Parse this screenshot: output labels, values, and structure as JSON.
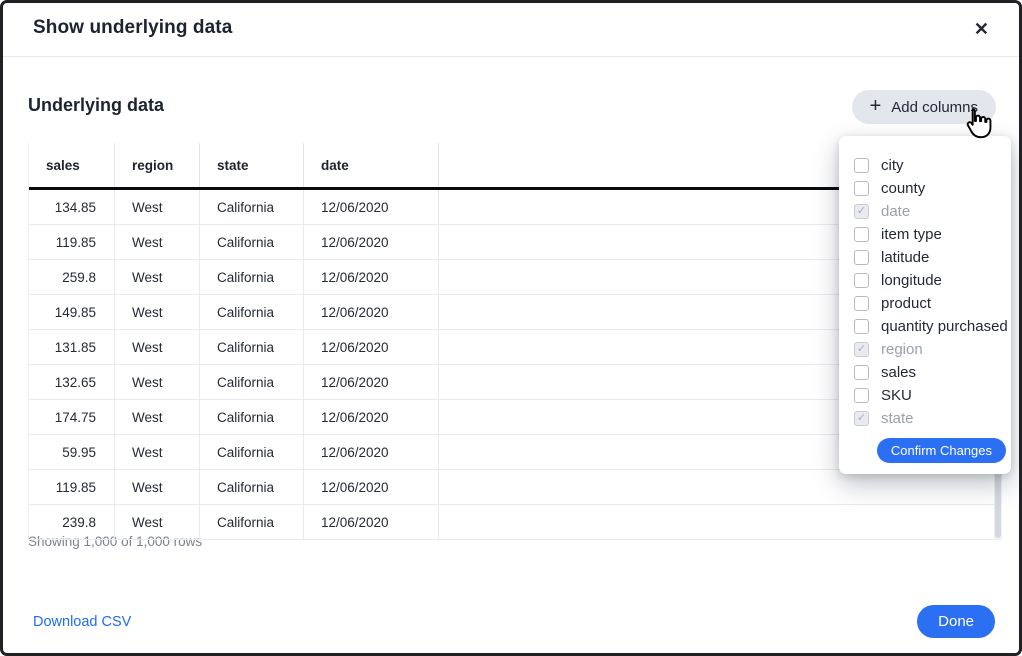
{
  "modal": {
    "title": "Show underlying data",
    "close_icon": "✕"
  },
  "body": {
    "section_title": "Underlying data",
    "add_columns": {
      "icon": "+",
      "label": "Add columns"
    },
    "summary": "Showing 1,000 of 1,000 rows"
  },
  "dropdown": {
    "items": [
      {
        "label": "city",
        "checked": false
      },
      {
        "label": "county",
        "checked": false
      },
      {
        "label": "date",
        "checked": true
      },
      {
        "label": "item type",
        "checked": false
      },
      {
        "label": "latitude",
        "checked": false
      },
      {
        "label": "longitude",
        "checked": false
      },
      {
        "label": "product",
        "checked": false
      },
      {
        "label": "quantity purchased",
        "checked": false
      },
      {
        "label": "region",
        "checked": true
      },
      {
        "label": "sales",
        "checked": false
      },
      {
        "label": "SKU",
        "checked": false
      },
      {
        "label": "state",
        "checked": true
      }
    ],
    "check_icon": "✓",
    "confirm_label": "Confirm Changes"
  },
  "table": {
    "columns": [
      "sales",
      "region",
      "state",
      "date"
    ],
    "rows": [
      [
        "134.85",
        "West",
        "California",
        "12/06/2020"
      ],
      [
        "119.85",
        "West",
        "California",
        "12/06/2020"
      ],
      [
        "259.8",
        "West",
        "California",
        "12/06/2020"
      ],
      [
        "149.85",
        "West",
        "California",
        "12/06/2020"
      ],
      [
        "131.85",
        "West",
        "California",
        "12/06/2020"
      ],
      [
        "132.65",
        "West",
        "California",
        "12/06/2020"
      ],
      [
        "174.75",
        "West",
        "California",
        "12/06/2020"
      ],
      [
        "59.95",
        "West",
        "California",
        "12/06/2020"
      ],
      [
        "119.85",
        "West",
        "California",
        "12/06/2020"
      ],
      [
        "239.8",
        "West",
        "California",
        "12/06/2020"
      ]
    ]
  },
  "footer": {
    "download_label": "Download CSV",
    "done_label": "Done"
  },
  "colors": {
    "accent_blue": "#2b70f2",
    "link_blue": "#1d6ef2",
    "button_gray": "#e3e6ec",
    "text_dark": "#1c2331",
    "disabled_gray": "#9aa0ae"
  }
}
